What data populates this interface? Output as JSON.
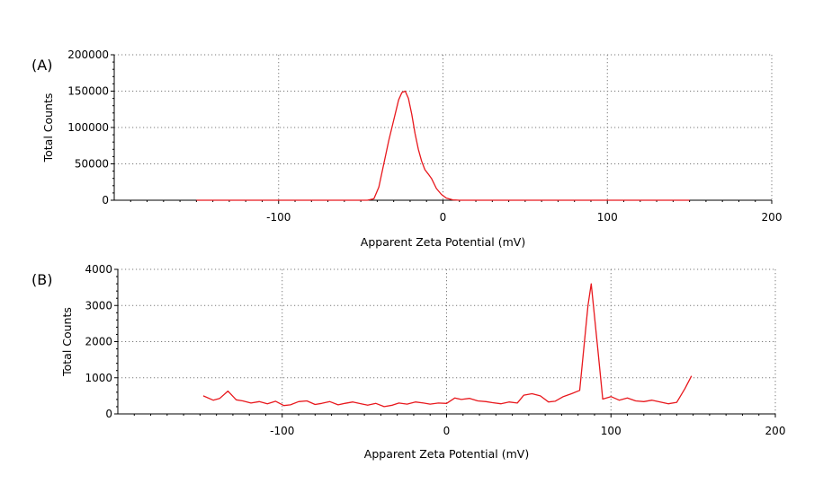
{
  "colors": {
    "series": "#e8181d",
    "axis": "#000000",
    "grid": "#7a7a7a"
  },
  "chart_data": [
    {
      "panel_label": "(A)",
      "type": "line",
      "title": "",
      "xlabel": "Apparent Zeta Potential (mV)",
      "ylabel": "Total Counts",
      "xlim": [
        -200,
        200
      ],
      "ylim": [
        0,
        200000
      ],
      "grid": true,
      "x_ticks": [
        -100,
        0,
        100,
        200
      ],
      "x_tick_labels": [
        "-100",
        "0",
        "100",
        "200"
      ],
      "y_ticks": [
        0,
        50000,
        100000,
        150000,
        200000
      ],
      "y_tick_labels": [
        "0",
        "50000",
        "100000",
        "150000",
        "200000"
      ],
      "series": [
        {
          "x": [
            -150,
            -100,
            -60,
            -46,
            -42,
            -39,
            -36,
            -33,
            -30,
            -27,
            -25,
            -23,
            -21,
            -19,
            -17,
            -15,
            -13,
            -11,
            -9,
            -7,
            -4,
            -1,
            2,
            6,
            10,
            50,
            100,
            150
          ],
          "y": [
            0,
            0,
            0,
            0,
            2000,
            18000,
            50000,
            82000,
            110000,
            138000,
            148000,
            150000,
            140000,
            118000,
            92000,
            70000,
            54000,
            42000,
            36000,
            30000,
            16000,
            8000,
            3000,
            500,
            0,
            0,
            0,
            0
          ]
        }
      ]
    },
    {
      "panel_label": "(B)",
      "type": "line",
      "title": "",
      "xlabel": "Apparent Zeta Potential (mV)",
      "ylabel": "Total Counts",
      "xlim": [
        -200,
        200
      ],
      "ylim": [
        0,
        4000
      ],
      "grid": true,
      "x_ticks": [
        -100,
        0,
        100,
        200
      ],
      "x_tick_labels": [
        "-100",
        "0",
        "100",
        "200"
      ],
      "y_ticks": [
        0,
        1000,
        2000,
        3000,
        4000
      ],
      "y_tick_labels": [
        "0",
        "1000",
        "2000",
        "3000",
        "4000"
      ],
      "series": [
        {
          "x": [
            -148,
            -142,
            -138,
            -133,
            -128,
            -124,
            -119,
            -114,
            -109,
            -104,
            -99,
            -95,
            -90,
            -85,
            -80,
            -76,
            -71,
            -66,
            -62,
            -57,
            -52,
            -48,
            -43,
            -38,
            -33,
            -29,
            -24,
            -19,
            -14,
            -10,
            -5,
            0,
            5,
            9,
            14,
            19,
            24,
            28,
            33,
            38,
            43,
            47,
            52,
            57,
            62,
            66,
            71,
            76,
            81,
            86,
            88,
            92,
            95,
            100,
            105,
            110,
            115,
            120,
            125,
            130,
            135,
            140,
            145,
            149
          ],
          "y": [
            500,
            380,
            430,
            630,
            390,
            360,
            300,
            340,
            280,
            350,
            230,
            250,
            340,
            360,
            260,
            290,
            340,
            250,
            290,
            330,
            280,
            240,
            290,
            200,
            240,
            300,
            270,
            330,
            300,
            270,
            300,
            290,
            440,
            400,
            430,
            360,
            340,
            310,
            280,
            330,
            300,
            520,
            560,
            500,
            330,
            350,
            480,
            560,
            650,
            3000,
            3600,
            1800,
            410,
            480,
            380,
            440,
            360,
            340,
            380,
            330,
            280,
            320,
            700,
            1050
          ]
        }
      ]
    }
  ]
}
